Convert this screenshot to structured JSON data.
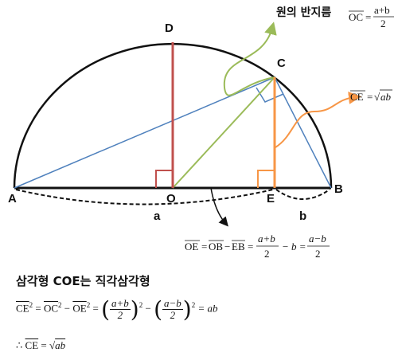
{
  "points": {
    "A": "A",
    "B": "B",
    "C": "C",
    "D": "D",
    "E": "E",
    "O": "O"
  },
  "segments": {
    "a": "a",
    "b": "b"
  },
  "radius_note": {
    "title": "원의 반지름",
    "lhs": "OC",
    "eq": "=",
    "num": "a+b",
    "den": "2"
  },
  "ce_note": {
    "lhs": "CE",
    "eq": "=",
    "sqrt": "√",
    "radicand": "ab"
  },
  "oe_formula": {
    "t1": "OE",
    "eq1": "=",
    "t2": "OB",
    "minus1": "−",
    "t3": "EB",
    "eq2": "=",
    "f1_num": "a+b",
    "f1_den": "2",
    "rest": "− b =",
    "f2_num": "a−b",
    "f2_den": "2"
  },
  "proof": {
    "heading": "삼각형 COE는 직각삼각형",
    "l1_ce": "CE",
    "l1_oc": "OC",
    "l1_oe": "OE",
    "sq": "2",
    "eq": "=",
    "minus": "−",
    "f1_num": "a+b",
    "f1_den": "2",
    "f2_num": "a−b",
    "f2_den": "2",
    "result": "= ab",
    "therefore": "∴",
    "l2_ce": "CE",
    "l2_sqrt": "√",
    "l2_radicand": "ab"
  },
  "colors": {
    "circle": "#111111",
    "diameter": "#111111",
    "od_line": "#c0504d",
    "ce_line": "#f79646",
    "oc_line": "#9bbb59",
    "chords": "#4f81bd"
  }
}
